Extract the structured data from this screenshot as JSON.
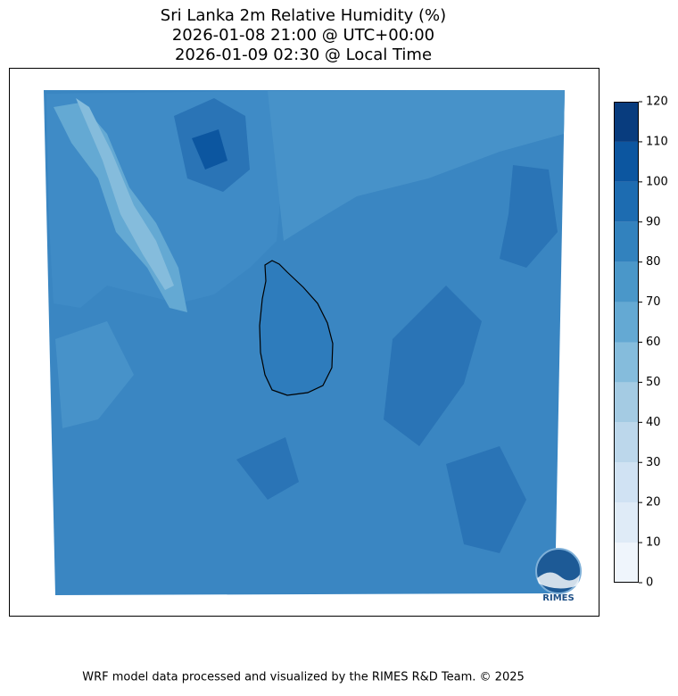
{
  "title": [
    "Sri Lanka 2m Relative Humidity (%)",
    "2026-01-08 21:00 @ UTC+00:00",
    "2026-01-09 02:30 @ Local Time"
  ],
  "colorbar": {
    "ticks": [
      0,
      10,
      20,
      30,
      40,
      50,
      60,
      70,
      80,
      90,
      100,
      110,
      120
    ],
    "colors": [
      "#eff5fc",
      "#dfebf7",
      "#d0e2f3",
      "#bcd7eb",
      "#a4cbe3",
      "#85bcdc",
      "#64a9d3",
      "#4a97c9",
      "#3282be",
      "#1d6cb1",
      "#0c56a0",
      "#083c7e"
    ]
  },
  "logo": "RIMES",
  "footer": "WRF model data processed and visualized by the RIMES R&D Team. © 2025"
}
